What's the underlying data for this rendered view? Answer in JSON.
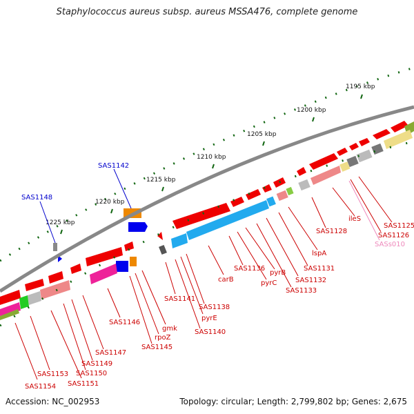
{
  "title": "Staphylococcus aureus subsp. aureus MSSA476, complete genome",
  "footer": {
    "accession": "Accession: NC_002953",
    "topology": "Topology: circular; Length: 2,799,802 bp; Genes: 2,675"
  },
  "ruler": [
    "1195 kbp",
    "1200 kbp",
    "1205 kbp",
    "1210 kbp",
    "1215 kbp",
    "1220 kbp",
    "1225 kbp"
  ],
  "outer_labels": [
    "SAS1142",
    "SAS1148"
  ],
  "gene_labels": [
    "SAS1125",
    "SAS1126",
    "SASs010",
    "ileS",
    "SAS1128",
    "lspA",
    "SAS1131",
    "SAS1132",
    "SAS1133",
    "pyrB",
    "pyrC",
    "SAS1136",
    "carB",
    "SAS1138",
    "pyrE",
    "SAS1140",
    "SAS1141",
    "gmk",
    "rpoZ",
    "SAS1145",
    "SAS1146",
    "SAS1147",
    "SAS1149",
    "SAS1150",
    "SAS1151",
    "SAS1153",
    "SAS1154"
  ],
  "colors": {
    "backbone": "#888888",
    "gene_forward": "#ee0000",
    "gene_blue": "#0000ee",
    "gene_cyan": "#22aaee",
    "gene_orange": "#ee8800",
    "label_red": "#cc0000",
    "label_blue": "#0000cc",
    "label_pink": "#ee88bb",
    "tick_green": "#116611"
  }
}
